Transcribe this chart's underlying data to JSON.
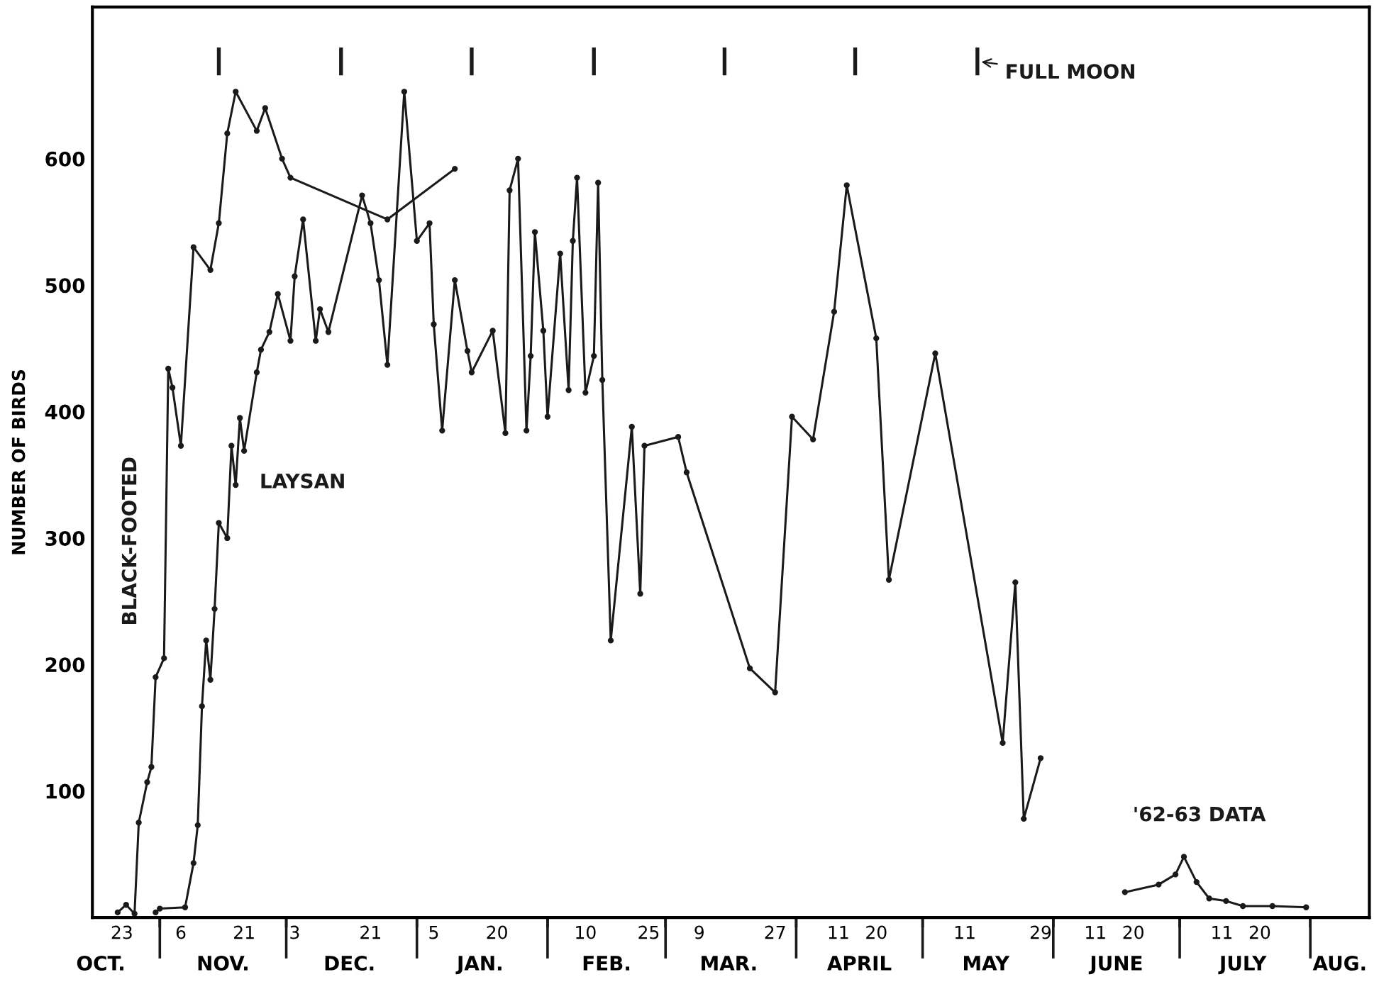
{
  "chart_data": {
    "type": "line",
    "ylabel": "NUMBER OF BIRDS",
    "xlim": [
      "1961-10-16",
      "1962-08-15"
    ],
    "ylim": [
      0,
      720
    ],
    "yticks": [
      100,
      200,
      300,
      400,
      500,
      600
    ],
    "xticks": [
      {
        "value": "1961-10-23",
        "label": "23"
      },
      {
        "value": "1961-11-01",
        "label": null
      },
      {
        "value": "1961-11-06",
        "label": "6"
      },
      {
        "value": "1961-11-21",
        "label": "21"
      },
      {
        "value": "1961-12-01",
        "label": null
      },
      {
        "value": "1961-12-03",
        "label": "3"
      },
      {
        "value": "1961-12-21",
        "label": "21"
      },
      {
        "value": "1962-01-01",
        "label": null
      },
      {
        "value": "1962-01-05",
        "label": "5"
      },
      {
        "value": "1962-01-20",
        "label": "20"
      },
      {
        "value": "1962-02-01",
        "label": null
      },
      {
        "value": "1962-02-10",
        "label": "10"
      },
      {
        "value": "1962-02-25",
        "label": "25"
      },
      {
        "value": "1962-03-01",
        "label": null
      },
      {
        "value": "1962-03-09",
        "label": "9"
      },
      {
        "value": "1962-03-27",
        "label": "27"
      },
      {
        "value": "1962-04-01",
        "label": null
      },
      {
        "value": "1962-04-11",
        "label": "11"
      },
      {
        "value": "1962-04-20",
        "label": "20"
      },
      {
        "value": "1962-05-01",
        "label": null
      },
      {
        "value": "1962-05-11",
        "label": "11"
      },
      {
        "value": "1962-05-29",
        "label": "29"
      },
      {
        "value": "1962-06-01",
        "label": null
      },
      {
        "value": "1962-06-11",
        "label": "11"
      },
      {
        "value": "1962-06-20",
        "label": "20"
      },
      {
        "value": "1962-07-01",
        "label": null
      },
      {
        "value": "1962-07-11",
        "label": "11"
      },
      {
        "value": "1962-07-20",
        "label": "20"
      },
      {
        "value": "1962-08-01",
        "label": null
      }
    ],
    "x2lim": [
      "1961-10-16",
      "1962-08-15"
    ],
    "x2ticks": [
      {
        "value": "1961-10-18",
        "label": "OCT."
      },
      {
        "value": "1961-11-16",
        "label": "NOV."
      },
      {
        "value": "1961-12-16",
        "label": "DEC."
      },
      {
        "value": "1962-01-16",
        "label": "JAN."
      },
      {
        "value": "1962-02-15",
        "label": "FEB."
      },
      {
        "value": "1962-03-16",
        "label": "MAR."
      },
      {
        "value": "1962-04-16",
        "label": "APRIL"
      },
      {
        "value": "1962-05-16",
        "label": "MAY"
      },
      {
        "value": "1962-06-16",
        "label": "JUNE"
      },
      {
        "value": "1962-07-16",
        "label": "JULY"
      },
      {
        "value": "1962-08-08",
        "label": "AUG."
      }
    ],
    "marker": "circle",
    "line_style": "solid",
    "grid": false,
    "series": [
      {
        "name": "BLACK-FOOTED",
        "color": "#1a1a1a",
        "x": [
          "1961-10-22",
          "1961-10-24",
          "1961-10-26",
          "1961-10-27",
          "1961-10-29",
          "1961-10-30",
          "1961-10-31",
          "1961-11-02",
          "1961-11-03",
          "1961-11-04",
          "1961-11-06",
          "1961-11-09",
          "1961-11-13",
          "1961-11-15",
          "1961-11-17",
          "1961-11-19",
          "1961-11-24",
          "1961-11-26",
          "1961-11-30",
          "1961-12-02",
          "1961-12-25",
          "1962-01-10"
        ],
        "values": [
          4,
          10,
          3,
          75,
          107,
          119,
          190,
          205,
          434,
          419,
          373,
          530,
          512,
          549,
          620,
          653,
          622,
          640,
          600,
          585,
          552,
          592
        ]
      },
      {
        "name": "LAYSAN",
        "color": "#1a1a1a",
        "x": [
          "1961-10-31",
          "1961-11-01",
          "1961-11-07",
          "1961-11-09",
          "1961-11-10",
          "1961-11-11",
          "1961-11-12",
          "1961-11-13",
          "1961-11-14",
          "1961-11-15",
          "1961-11-17",
          "1961-11-18",
          "1961-11-19",
          "1961-11-20",
          "1961-11-21",
          "1961-11-24",
          "1961-11-25",
          "1961-11-27",
          "1961-11-29",
          "1961-12-02",
          "1961-12-03",
          "1961-12-05",
          "1961-12-08",
          "1961-12-09",
          "1961-12-11",
          "1961-12-19",
          "1961-12-21",
          "1961-12-23",
          "1961-12-25",
          "1961-12-29",
          "1962-01-01",
          "1962-01-04",
          "1962-01-05",
          "1962-01-07",
          "1962-01-10",
          "1962-01-13",
          "1962-01-14",
          "1962-01-19",
          "1962-01-22",
          "1962-01-23",
          "1962-01-25",
          "1962-01-27",
          "1962-01-28",
          "1962-01-29",
          "1962-01-31",
          "1962-02-01",
          "1962-02-04",
          "1962-02-06",
          "1962-02-07",
          "1962-02-08",
          "1962-02-10",
          "1962-02-12",
          "1962-02-13",
          "1962-02-14",
          "1962-02-16",
          "1962-02-21",
          "1962-02-23",
          "1962-02-24",
          "1962-03-04",
          "1962-03-06",
          "1962-03-21",
          "1962-03-27",
          "1962-03-31",
          "1962-04-05",
          "1962-04-10",
          "1962-04-13",
          "1962-04-20",
          "1962-04-23",
          "1962-05-04",
          "1962-05-20",
          "1962-05-23",
          "1962-05-25",
          "1962-05-29"
        ],
        "values": [
          4,
          7,
          8,
          43,
          73,
          167,
          219,
          188,
          244,
          312,
          300,
          373,
          342,
          395,
          369,
          431,
          449,
          463,
          493,
          456,
          507,
          552,
          456,
          481,
          463,
          571,
          549,
          504,
          437,
          653,
          535,
          549,
          469,
          385,
          504,
          448,
          431,
          464,
          383,
          575,
          600,
          385,
          444,
          542,
          464,
          396,
          525,
          417,
          535,
          585,
          415,
          444,
          581,
          425,
          219,
          388,
          256,
          373,
          380,
          352,
          197,
          178,
          396,
          378,
          479,
          579,
          458,
          267,
          446,
          138,
          265,
          78,
          126
        ]
      },
      {
        "name": "'62-63 DATA",
        "color": "#1a1a1a",
        "x": [
          "1962-06-18",
          "1962-06-26",
          "1962-06-30",
          "1962-07-02",
          "1962-07-05",
          "1962-07-08",
          "1962-07-12",
          "1962-07-16",
          "1962-07-23",
          "1962-07-31"
        ],
        "values": [
          20,
          26,
          34,
          48,
          28,
          15,
          13,
          9,
          9,
          8
        ]
      },
      {
        "name": "FULL MOON",
        "type": "bar",
        "color": "#1a1a1a",
        "x": [
          "1961-11-15",
          "1961-12-14",
          "1962-01-14",
          "1962-02-12",
          "1962-03-15",
          "1962-04-15",
          "1962-05-14"
        ],
        "base": [
          666,
          666,
          666,
          666,
          666,
          666,
          666
        ],
        "values": [
          22,
          22,
          22,
          22,
          22,
          22,
          22
        ]
      }
    ]
  }
}
